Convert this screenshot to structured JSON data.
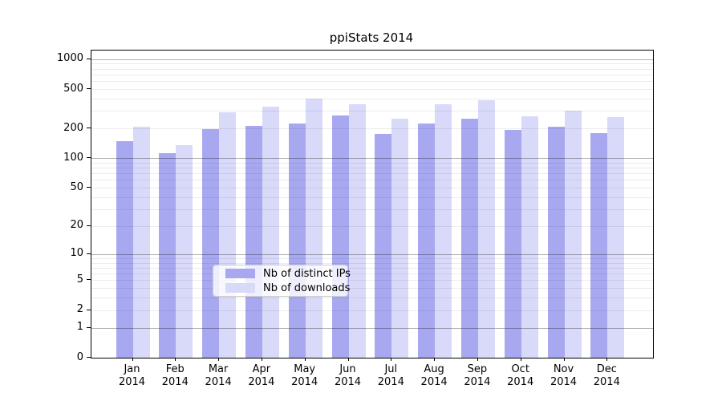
{
  "chart_data": {
    "type": "bar",
    "title": "ppiStats 2014",
    "yscale": "log1p",
    "grid": true,
    "legend_position": "inside-bottom-center",
    "categories": [
      "Jan",
      "Feb",
      "Mar",
      "Apr",
      "May",
      "Jun",
      "Jul",
      "Aug",
      "Sep",
      "Oct",
      "Nov",
      "Dec"
    ],
    "category_year": "2014",
    "ytick_labels": [
      0,
      1,
      2,
      5,
      10,
      20,
      50,
      100,
      200,
      500,
      1000
    ],
    "ylim": [
      0,
      1230
    ],
    "series": [
      {
        "name": "Nb of distinct IPs",
        "color": "#a8a8f0",
        "values": [
          150,
          113,
          198,
          213,
          224,
          270,
          175,
          224,
          249,
          195,
          207,
          178
        ]
      },
      {
        "name": "Nb of downloads",
        "color": "#d9d9f9",
        "values": [
          208,
          136,
          293,
          335,
          400,
          353,
          249,
          351,
          382,
          267,
          300,
          262
        ]
      }
    ]
  },
  "colors": {
    "major_grid": "rgba(0,0,0,0.30)",
    "minor_grid": "rgba(0,0,0,0.075)",
    "spine": "#000000",
    "legend_border": "#cccccc"
  }
}
